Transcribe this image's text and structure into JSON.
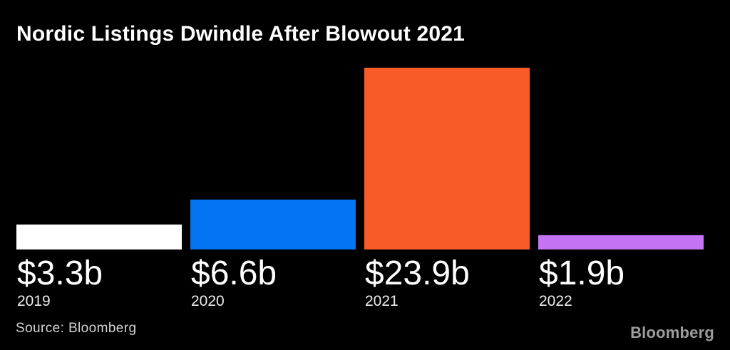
{
  "page": {
    "background": "#000000"
  },
  "header": {
    "title": "Nordic Listings Dwindle After Blowout 2021"
  },
  "footer": {
    "source": "Source: Bloomberg",
    "brand": "Bloomberg"
  },
  "chart_data": {
    "type": "bar",
    "title": "Nordic Listings Dwindle After Blowout 2021",
    "categories": [
      "2019",
      "2020",
      "2021",
      "2022"
    ],
    "values": [
      3.3,
      6.6,
      23.9,
      1.9
    ],
    "value_labels": [
      "$3.3b",
      "$6.6b",
      "$23.9b",
      "$1.9b"
    ],
    "bar_colors": [
      "#ffffff",
      "#0574f2",
      "#f85b27",
      "#c474f3"
    ],
    "ylim": [
      0,
      23.9
    ],
    "grid": false,
    "legend": false,
    "background": "#000000",
    "title_color": "#ffffff",
    "value_label_color": "#ffffff",
    "year_label_color": "#ededed",
    "source": "Source: Bloomberg",
    "brand": "Bloomberg"
  }
}
